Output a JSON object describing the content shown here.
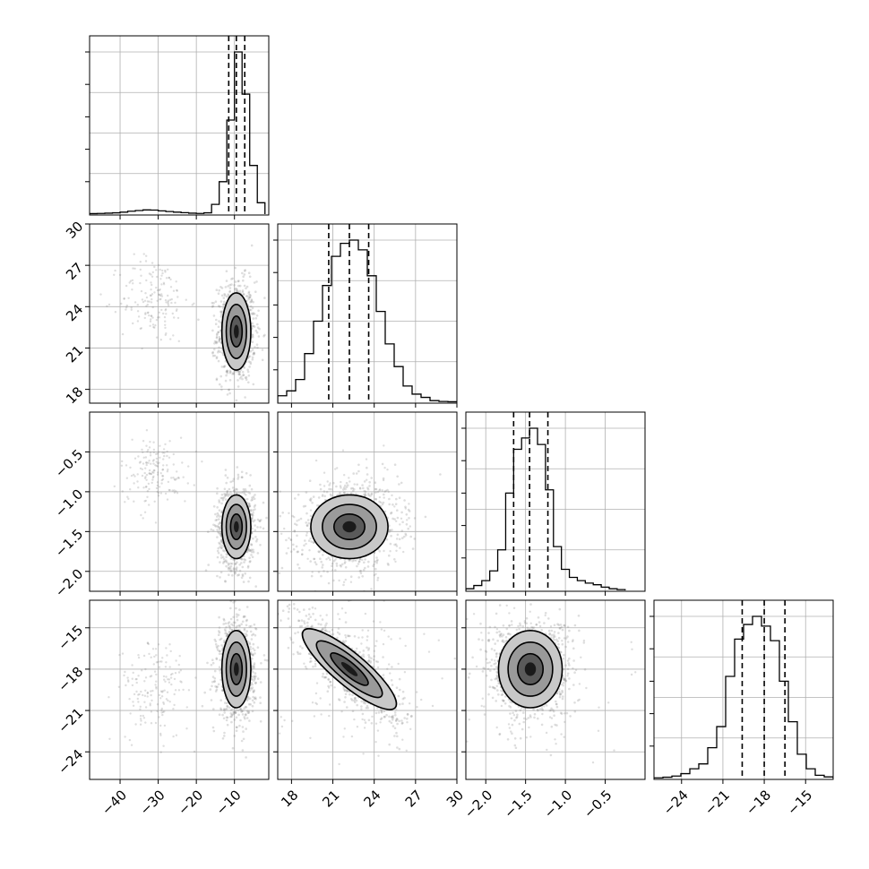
{
  "chart_data": {
    "type": "corner",
    "colors": {
      "points": "#808080",
      "lines": "#000000",
      "grid": "#b0b0b0"
    },
    "grid": true,
    "parameters": [
      {
        "range": [
          -48,
          -1
        ],
        "ticks": [
          -40,
          -30,
          -20,
          -10
        ],
        "tick_labels": [
          "−40",
          "−30",
          "−20",
          "−10"
        ],
        "hist_bins": [
          -48,
          -46,
          -44,
          -42,
          -40,
          -38,
          -36,
          -34,
          -32,
          -30,
          -28,
          -26,
          -24,
          -22,
          -20,
          -18,
          -16,
          -14,
          -12,
          -10,
          -8,
          -6,
          -4,
          -2
        ],
        "hist_counts": [
          0.003,
          0.004,
          0.006,
          0.008,
          0.012,
          0.018,
          0.022,
          0.026,
          0.025,
          0.02,
          0.016,
          0.012,
          0.009,
          0.006,
          0.004,
          0.008,
          0.06,
          0.2,
          0.58,
          1.0,
          0.74,
          0.3,
          0.07
        ],
        "quantiles": [
          -11.5,
          -9.5,
          -7.3
        ],
        "mean": -9.5,
        "std": 1.9,
        "cluster": {
          "mean": -31,
          "std": 4.5
        }
      },
      {
        "range": [
          17,
          30
        ],
        "ticks": [
          18,
          21,
          24,
          27,
          30
        ],
        "tick_labels": [
          "18",
          "21",
          "24",
          "27",
          "30"
        ],
        "hist_bins": [
          17,
          17.65,
          18.3,
          18.95,
          19.6,
          20.25,
          20.9,
          21.55,
          22.2,
          22.85,
          23.5,
          24.15,
          24.8,
          25.45,
          26.1,
          26.75,
          27.4,
          28.05,
          28.7,
          29.35,
          30
        ],
        "hist_counts": [
          0.04,
          0.07,
          0.14,
          0.3,
          0.5,
          0.72,
          0.9,
          0.98,
          1.0,
          0.94,
          0.78,
          0.56,
          0.36,
          0.22,
          0.1,
          0.05,
          0.03,
          0.01,
          0.005,
          0.003
        ],
        "quantiles": [
          20.7,
          22.2,
          23.6
        ],
        "mean": 22.2,
        "std": 1.4,
        "cluster": {
          "mean": 24.5,
          "std": 1.6
        }
      },
      {
        "range": [
          -2.25,
          0
        ],
        "ticks": [
          -2.0,
          -1.5,
          -1.0,
          -0.5
        ],
        "tick_labels": [
          "−2.0",
          "−1.5",
          "−1.0",
          "−0.5"
        ],
        "hist_bins": [
          -2.25,
          -2.15,
          -2.05,
          -1.95,
          -1.85,
          -1.75,
          -1.65,
          -1.55,
          -1.45,
          -1.35,
          -1.25,
          -1.15,
          -1.05,
          -0.95,
          -0.85,
          -0.75,
          -0.65,
          -0.55,
          -0.45,
          -0.35,
          -0.25
        ],
        "hist_counts": [
          0.01,
          0.03,
          0.06,
          0.12,
          0.25,
          0.6,
          0.87,
          0.94,
          1.0,
          0.9,
          0.62,
          0.27,
          0.13,
          0.08,
          0.06,
          0.045,
          0.035,
          0.02,
          0.01,
          0.005
        ],
        "quantiles": [
          -1.65,
          -1.45,
          -1.22
        ],
        "mean": -1.44,
        "std": 0.2,
        "cluster": {
          "mean": -0.75,
          "std": 0.22
        }
      },
      {
        "range": [
          -26,
          -13
        ],
        "ticks": [
          -24,
          -21,
          -18,
          -15
        ],
        "tick_labels": [
          "−24",
          "−21",
          "−18",
          "−15"
        ],
        "hist_bins": [
          -26,
          -25.35,
          -24.7,
          -24.05,
          -23.4,
          -22.75,
          -22.1,
          -21.45,
          -20.8,
          -20.15,
          -19.5,
          -18.85,
          -18.2,
          -17.55,
          -16.9,
          -16.25,
          -15.6,
          -14.95,
          -14.3,
          -13.65,
          -13
        ],
        "hist_counts": [
          0.004,
          0.008,
          0.015,
          0.03,
          0.06,
          0.09,
          0.19,
          0.32,
          0.63,
          0.86,
          0.95,
          1.0,
          0.94,
          0.85,
          0.6,
          0.35,
          0.15,
          0.06,
          0.02,
          0.01
        ],
        "quantiles": [
          -19.6,
          -18.0,
          -16.5
        ],
        "mean": -18.0,
        "std": 1.4,
        "cluster": {
          "mean": -19.5,
          "std": 1.8
        }
      }
    ],
    "pair_correlation": {
      "1-0": 0.0,
      "2-0": 0.0,
      "3-0": 0.0,
      "2-1": 0.1,
      "3-1": -0.82,
      "3-2": 0.0
    }
  }
}
